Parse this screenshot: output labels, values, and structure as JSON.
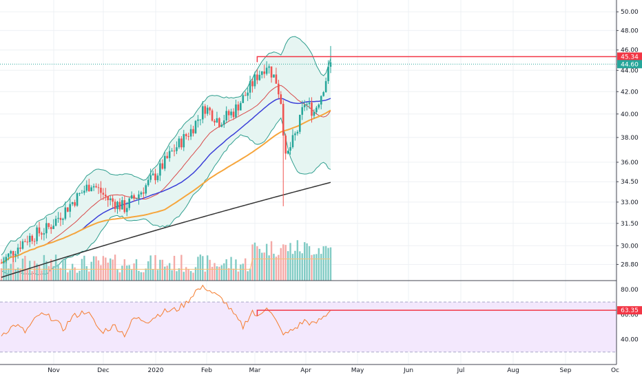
{
  "chart_data": [
    {
      "type": "candlestick",
      "title": "",
      "price_axis": {
        "ticks": [
          "50.00",
          "48.00",
          "46.00",
          "44.00",
          "42.00",
          "40.00",
          "38.00",
          "36.00",
          "34.50",
          "33.00",
          "31.50",
          "30.00",
          "28.80"
        ],
        "tick_values": [
          50.0,
          48.0,
          46.0,
          44.0,
          42.0,
          40.0,
          38.0,
          36.0,
          34.5,
          33.0,
          31.5,
          30.0,
          28.8
        ],
        "scale": "log",
        "range": [
          27.8,
          51.0
        ]
      },
      "time_axis": {
        "ticks": [
          "Nov",
          "Dec",
          "2020",
          "Feb",
          "Mar",
          "Apr",
          "May",
          "Jun",
          "Jul",
          "Aug",
          "Sep",
          "Oc"
        ]
      },
      "grid": true,
      "price_badges": [
        {
          "label": "45.34",
          "value": 45.34,
          "color": "#f23645"
        },
        {
          "label": "44.60",
          "value": 44.6,
          "color": "#26a69a"
        }
      ],
      "resistance_line": {
        "value": 45.34,
        "color": "#f23645"
      },
      "indicators": [
        "bollinger-bands",
        "sma-20",
        "sma-50",
        "sma-100",
        "sma-200",
        "volume"
      ],
      "colors": {
        "up": "#26a69a",
        "down": "#ef5350",
        "bb": "#2e9e8e",
        "bb_fill": "#e6f5f2",
        "sma20": "#d84a4a",
        "sma50": "#3a3ed8",
        "sma100": "#f6a53b",
        "sma200": "#333333",
        "vol_up": "#80cbc4",
        "vol_down": "#f4a9a6"
      },
      "approx_ohlc_summary": {
        "start_close": 28.9,
        "peak_close": 45.0,
        "crash_low": 32.7,
        "last_high": 46.4,
        "last_close": 44.6
      }
    },
    {
      "type": "line",
      "name": "RSI",
      "axis_ticks": [
        "80.00",
        "60.00",
        "40.00"
      ],
      "axis_values": [
        80,
        60,
        40
      ],
      "range": [
        20,
        86
      ],
      "band": [
        30,
        70
      ],
      "badge": {
        "label": "63.35",
        "value": 63.35,
        "color": "#f23645"
      },
      "resistance_line": {
        "value": 63.35,
        "color": "#f23645"
      },
      "colors": {
        "line": "#f57c2d",
        "band_fill": "#f3e8fd"
      }
    }
  ]
}
